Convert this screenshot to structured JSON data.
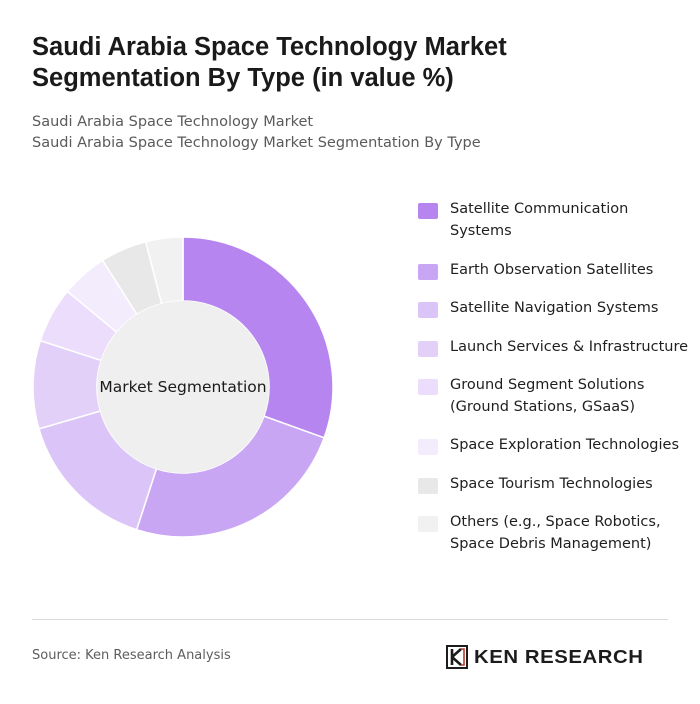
{
  "header": {
    "title": "Saudi Arabia Space Technology Market Segmentation By Type (in value %)",
    "subtitle_line1": "Saudi Arabia Space Technology Market",
    "subtitle_line2": "Saudi Arabia Space Technology Market Segmentation By Type"
  },
  "chart_data": {
    "type": "pie",
    "variant": "donut",
    "center_label": "Market Segmentation",
    "legend_position": "right",
    "categories": [
      "Satellite Communication Systems",
      "Earth Observation Satellites",
      "Satellite Navigation Systems",
      "Launch Services & Infrastructure",
      "Ground Segment Solutions (Ground Stations, GSaaS)",
      "Space Exploration Technologies",
      "Space Tourism Technologies",
      "Others (e.g., Space Robotics, Space Debris Management)"
    ],
    "values": [
      30.5,
      24.5,
      15.5,
      9.5,
      6,
      5,
      5,
      4
    ],
    "colors": [
      "#b785ef",
      "#c9a6f4",
      "#dbc5f8",
      "#e2d0f9",
      "#ebddfb",
      "#f3ecfd",
      "#e8e8e8",
      "#f1f1f1"
    ]
  },
  "footer": {
    "source": "Source: Ken Research Analysis",
    "brand": "KEN RESEARCH"
  }
}
